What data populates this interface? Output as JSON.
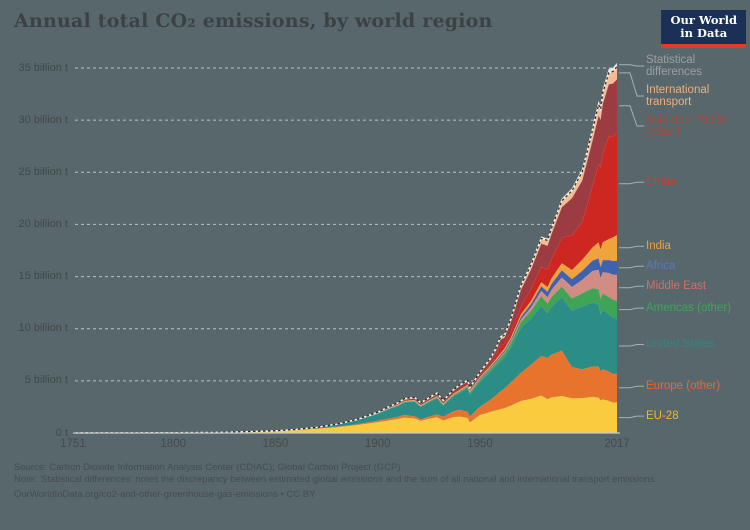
{
  "title": "Annual total CO₂ emissions, by world region",
  "logo": {
    "line1": "Our World",
    "line2": "in Data"
  },
  "footer": {
    "source": "Source: Carbon Dioxide Information Analysis Center (CDIAC); Global Carbon Project (GCP)",
    "note": "Note: 'Statistical differences' notes the discrepancy between estimated global emissions and the sum of all national and international transport emissions.",
    "url": "OurWorldInData.org/co2-and-other-greenhouse-gas-emissions • CC BY"
  },
  "colors": {
    "background": "#58676B",
    "gridline": "#DFE1E1",
    "axis_line": "#C6CACB",
    "leader_line": "#A9B0B2",
    "dashed_total_dark": "#2B2B2B",
    "dashed_total_light": "#F5F2EA"
  },
  "chart_data": {
    "type": "area",
    "stacked": true,
    "title": "Annual total CO₂ emissions, by world region",
    "unit": "billion tonnes CO₂ per year",
    "xlim": [
      1751,
      2017
    ],
    "ylim": [
      0,
      35
    ],
    "grid": true,
    "legend_position": "right",
    "xticks": [
      1751,
      1800,
      1850,
      1900,
      1950,
      2017
    ],
    "yticks": [
      {
        "value": 0,
        "label": "0 t"
      },
      {
        "value": 5,
        "label": "5 billion t"
      },
      {
        "value": 10,
        "label": "10 billion t"
      },
      {
        "value": 15,
        "label": "15 billion t"
      },
      {
        "value": 20,
        "label": "20 billion t"
      },
      {
        "value": 25,
        "label": "25 billion t"
      },
      {
        "value": 30,
        "label": "30 billion t"
      },
      {
        "value": 35,
        "label": "35 billion t"
      }
    ],
    "x": [
      1751,
      1775,
      1800,
      1825,
      1850,
      1860,
      1870,
      1880,
      1890,
      1900,
      1905,
      1910,
      1913,
      1918,
      1921,
      1925,
      1929,
      1932,
      1937,
      1940,
      1944,
      1945,
      1950,
      1955,
      1958,
      1960,
      1962,
      1965,
      1970,
      1975,
      1980,
      1983,
      1985,
      1990,
      1995,
      2000,
      2005,
      2008,
      2009,
      2010,
      2013,
      2015,
      2017
    ],
    "series": [
      {
        "name": "EU-28",
        "color": "#FACB3F",
        "label_color": "#EEB930",
        "label_lines": [
          "EU-28"
        ],
        "values": [
          0.009,
          0.015,
          0.03,
          0.06,
          0.18,
          0.28,
          0.41,
          0.57,
          0.78,
          1.05,
          1.2,
          1.35,
          1.49,
          1.4,
          1.18,
          1.37,
          1.52,
          1.2,
          1.53,
          1.58,
          1.45,
          1.02,
          1.74,
          2.02,
          2.2,
          2.29,
          2.4,
          2.63,
          3.08,
          3.28,
          3.61,
          3.25,
          3.43,
          3.56,
          3.33,
          3.36,
          3.48,
          3.39,
          3.14,
          3.23,
          3.1,
          2.92,
          2.96
        ]
      },
      {
        "name": "Europe (other)",
        "color": "#E8732C",
        "label_color": "#E86A30",
        "label_lines": [
          "Europe (other)"
        ],
        "values": [
          0,
          0,
          0.001,
          0.004,
          0.01,
          0.015,
          0.02,
          0.04,
          0.07,
          0.14,
          0.18,
          0.22,
          0.26,
          0.2,
          0.15,
          0.2,
          0.28,
          0.35,
          0.55,
          0.65,
          0.6,
          0.55,
          0.8,
          1.15,
          1.45,
          1.7,
          1.9,
          2.2,
          2.7,
          3.3,
          3.8,
          3.95,
          4.1,
          4.35,
          3.0,
          2.75,
          2.9,
          3.0,
          2.8,
          2.9,
          2.8,
          2.75,
          2.75
        ]
      },
      {
        "name": "United States",
        "color": "#2C8C86",
        "label_color": "#2F8680",
        "label_lines": [
          "United States"
        ],
        "values": [
          0,
          0,
          0,
          0.005,
          0.02,
          0.05,
          0.1,
          0.21,
          0.4,
          0.66,
          0.9,
          1.06,
          1.2,
          1.43,
          1.2,
          1.38,
          1.55,
          1.1,
          1.45,
          1.62,
          2.25,
          2.15,
          2.38,
          2.7,
          2.8,
          2.89,
          3.0,
          3.35,
          4.33,
          4.42,
          4.81,
          4.3,
          4.57,
          5.12,
          5.43,
          6.01,
          6.13,
          5.93,
          5.49,
          5.7,
          5.5,
          5.42,
          5.27
        ]
      },
      {
        "name": "Americas (other)",
        "color": "#3FA456",
        "label_color": "#3FA45C",
        "label_lines": [
          "Americas (other)"
        ],
        "values": [
          0,
          0,
          0,
          0,
          0.001,
          0.002,
          0.004,
          0.006,
          0.01,
          0.02,
          0.03,
          0.04,
          0.05,
          0.06,
          0.06,
          0.07,
          0.08,
          0.08,
          0.1,
          0.12,
          0.14,
          0.15,
          0.2,
          0.26,
          0.3,
          0.33,
          0.36,
          0.42,
          0.55,
          0.72,
          0.92,
          0.93,
          0.95,
          1.02,
          1.15,
          1.28,
          1.38,
          1.48,
          1.48,
          1.55,
          1.65,
          1.7,
          1.7
        ]
      },
      {
        "name": "Middle East",
        "color": "#D18D84",
        "label_color": "#CE7168",
        "label_lines": [
          "Middle East"
        ],
        "values": [
          0,
          0,
          0,
          0,
          0,
          0,
          0,
          0,
          0,
          0,
          0,
          0,
          0,
          0,
          0,
          0.001,
          0.002,
          0.003,
          0.005,
          0.01,
          0.015,
          0.02,
          0.04,
          0.07,
          0.09,
          0.1,
          0.12,
          0.15,
          0.22,
          0.35,
          0.5,
          0.6,
          0.7,
          0.87,
          1.1,
          1.3,
          1.65,
          1.85,
          1.95,
          2.05,
          2.3,
          2.4,
          2.5
        ]
      },
      {
        "name": "Africa",
        "color": "#3E62AD",
        "label_color": "#5C79B8",
        "label_lines": [
          "Africa"
        ],
        "values": [
          0,
          0,
          0,
          0,
          0,
          0,
          0,
          0.001,
          0.002,
          0.005,
          0.007,
          0.01,
          0.012,
          0.015,
          0.016,
          0.018,
          0.02,
          0.02,
          0.03,
          0.05,
          0.06,
          0.06,
          0.09,
          0.11,
          0.13,
          0.14,
          0.15,
          0.18,
          0.25,
          0.32,
          0.45,
          0.52,
          0.58,
          0.68,
          0.75,
          0.85,
          1.0,
          1.1,
          1.1,
          1.15,
          1.25,
          1.3,
          1.35
        ]
      },
      {
        "name": "India",
        "color": "#F0A33C",
        "label_color": "#EFA13C",
        "label_lines": [
          "India"
        ],
        "values": [
          0,
          0,
          0,
          0,
          0.001,
          0.002,
          0.003,
          0.01,
          0.02,
          0.03,
          0.04,
          0.05,
          0.06,
          0.07,
          0.07,
          0.07,
          0.08,
          0.08,
          0.09,
          0.1,
          0.11,
          0.11,
          0.12,
          0.14,
          0.16,
          0.17,
          0.18,
          0.22,
          0.25,
          0.31,
          0.38,
          0.45,
          0.52,
          0.69,
          0.87,
          1.06,
          1.26,
          1.55,
          1.65,
          1.71,
          2.0,
          2.27,
          2.46
        ]
      },
      {
        "name": "China",
        "color": "#CE2722",
        "label_color": "#CC3C33",
        "label_lines": [
          "China"
        ],
        "values": [
          0,
          0,
          0,
          0,
          0,
          0,
          0,
          0,
          0,
          0.001,
          0.005,
          0.01,
          0.015,
          0.02,
          0.02,
          0.025,
          0.03,
          0.03,
          0.06,
          0.08,
          0.06,
          0.04,
          0.08,
          0.16,
          0.4,
          0.78,
          0.44,
          0.55,
          0.8,
          1.16,
          1.49,
          1.7,
          1.9,
          2.45,
          3.35,
          3.65,
          5.9,
          7.55,
          7.9,
          8.5,
          9.9,
          9.7,
          9.84
        ]
      },
      {
        "name": "Asia and Pacific (other)",
        "color": "#9C3C42",
        "label_color": "#A6473E",
        "label_lines": [
          "Asia and Pacific",
          "(other)"
        ],
        "values": [
          0,
          0,
          0,
          0,
          0,
          0,
          0.002,
          0.005,
          0.01,
          0.04,
          0.06,
          0.09,
          0.11,
          0.13,
          0.12,
          0.14,
          0.16,
          0.15,
          0.23,
          0.28,
          0.25,
          0.12,
          0.25,
          0.35,
          0.45,
          0.55,
          0.6,
          0.9,
          1.55,
          1.85,
          2.2,
          2.25,
          2.35,
          2.9,
          3.55,
          3.95,
          4.35,
          4.6,
          4.55,
          4.75,
          4.95,
          5.05,
          5.1
        ]
      },
      {
        "name": "International transport",
        "color": "#F5BC95",
        "label_color": "#F0AF7E",
        "label_lines": [
          "International",
          "transport"
        ],
        "values": [
          0,
          0,
          0,
          0,
          0,
          0,
          0,
          0.005,
          0.01,
          0.05,
          0.06,
          0.08,
          0.1,
          0.09,
          0.09,
          0.1,
          0.11,
          0.1,
          0.11,
          0.1,
          0.11,
          0.12,
          0.14,
          0.17,
          0.2,
          0.22,
          0.24,
          0.28,
          0.4,
          0.45,
          0.5,
          0.52,
          0.55,
          0.63,
          0.7,
          0.85,
          1.0,
          1.05,
          1.0,
          1.05,
          1.1,
          1.15,
          1.2
        ]
      },
      {
        "name": "Statistical differences",
        "color": "#E9E7E0",
        "label_color": "#9AA0A2",
        "label_lines": [
          "Statistical",
          "differences"
        ],
        "values": [
          0,
          0,
          0,
          0,
          0,
          0,
          0,
          0,
          0,
          0,
          0,
          0,
          0,
          0,
          0,
          0,
          0,
          0,
          0,
          0,
          0,
          0,
          0.05,
          0.08,
          0.1,
          0.12,
          0.1,
          0.12,
          0.15,
          0.15,
          0.18,
          0.15,
          0.15,
          0.2,
          0.22,
          0.25,
          0.3,
          0.32,
          0.3,
          0.35,
          0.35,
          0.35,
          0.35
        ]
      }
    ]
  }
}
